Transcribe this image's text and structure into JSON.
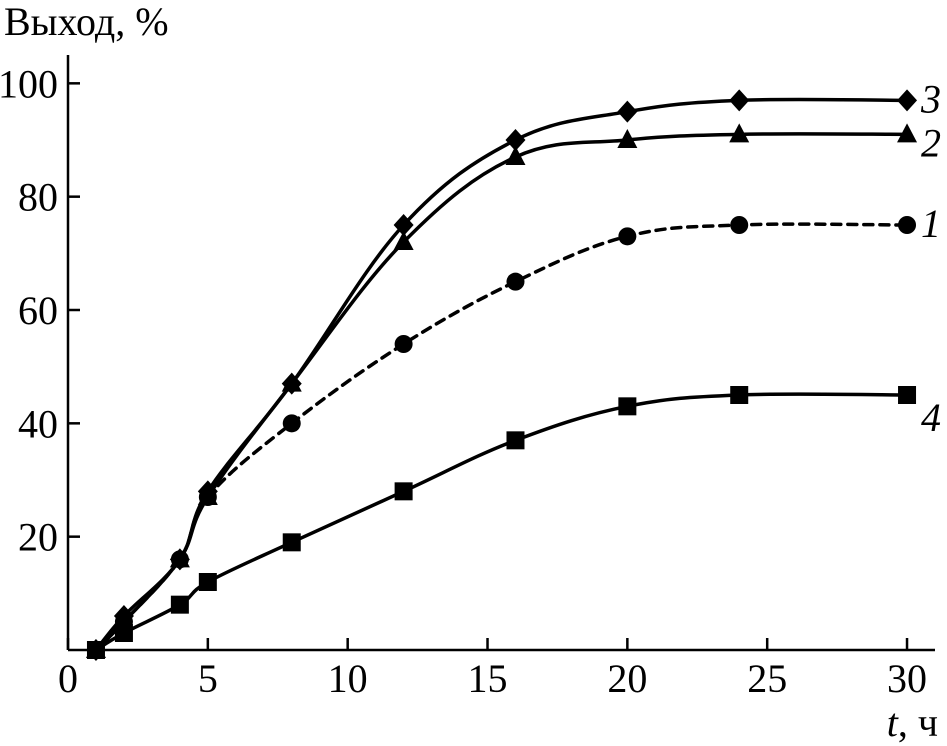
{
  "chart_data": {
    "type": "line",
    "ylabel": "Выход, %",
    "xlabel_italic": "t",
    "xlabel_unit": ", ч",
    "xlim": [
      0,
      31
    ],
    "ylim": [
      0,
      105
    ],
    "xticks": [
      0,
      5,
      10,
      15,
      20,
      25,
      30
    ],
    "yticks": [
      20,
      40,
      60,
      80,
      100
    ],
    "x_tick_labels": [
      "0",
      "5",
      "10",
      "15",
      "20",
      "25",
      "30"
    ],
    "y_tick_labels": [
      "20",
      "40",
      "60",
      "80",
      "100"
    ],
    "grid": false,
    "series": [
      {
        "name": "3",
        "marker": "diamond",
        "dash": "solid",
        "x": [
          1,
          2,
          4,
          5,
          8,
          12,
          16,
          20,
          24,
          30
        ],
        "y": [
          0,
          6,
          16,
          28,
          47,
          75,
          90,
          95,
          97,
          97
        ]
      },
      {
        "name": "2",
        "marker": "triangle",
        "dash": "solid",
        "x": [
          1,
          2,
          4,
          5,
          8,
          12,
          16,
          20,
          24,
          30
        ],
        "y": [
          0,
          5,
          16,
          27,
          47,
          72,
          87,
          90,
          91,
          91
        ]
      },
      {
        "name": "1",
        "marker": "circle",
        "dash": "dashed",
        "x": [
          1,
          2,
          4,
          5,
          8,
          12,
          16,
          20,
          24,
          30
        ],
        "y": [
          0,
          5,
          16,
          27,
          40,
          54,
          65,
          73,
          75,
          75
        ]
      },
      {
        "name": "4",
        "marker": "square",
        "dash": "solid",
        "x": [
          1,
          2,
          4,
          5,
          8,
          12,
          16,
          20,
          24,
          30
        ],
        "y": [
          0,
          3,
          8,
          12,
          19,
          28,
          37,
          43,
          45,
          45
        ]
      }
    ]
  }
}
